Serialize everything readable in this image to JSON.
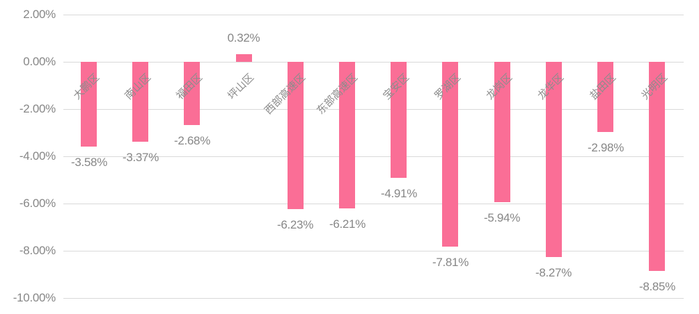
{
  "chart_data": {
    "type": "bar",
    "title": "",
    "xlabel": "",
    "ylabel": "",
    "categories": [
      "大鹏区",
      "南山区",
      "福田区",
      "坪山区",
      "西部高速区",
      "东部高速区",
      "宝安区",
      "罗湖区",
      "龙岗区",
      "龙华区",
      "盐田区",
      "光明区"
    ],
    "values": [
      -3.58,
      -3.37,
      -2.68,
      0.32,
      -6.23,
      -6.21,
      -4.91,
      -7.81,
      -5.94,
      -8.27,
      -2.98,
      -8.85
    ],
    "data_labels": [
      "-3.58%",
      "-3.37%",
      "-2.68%",
      "0.32%",
      "-6.23%",
      "-6.21%",
      "-4.91%",
      "-7.81%",
      "-5.94%",
      "-8.27%",
      "-2.98%",
      "-8.85%"
    ],
    "ylim": [
      -10,
      2
    ],
    "y_ticks": [
      2,
      0,
      -2,
      -4,
      -6,
      -8,
      -10
    ],
    "y_tick_labels": [
      "2.00%",
      "0.00%",
      "-2.00%",
      "-4.00%",
      "-6.00%",
      "-8.00%",
      "-10.00%"
    ],
    "grid": true,
    "legend": false,
    "category_label_angle_deg": -45,
    "colors": {
      "bar": "#fa6e96",
      "gridline": "#d9d9d9",
      "tick_text": "#878787",
      "data_label_text": "#878787",
      "category_text": "#8c8c8c",
      "background": "#ffffff"
    }
  }
}
